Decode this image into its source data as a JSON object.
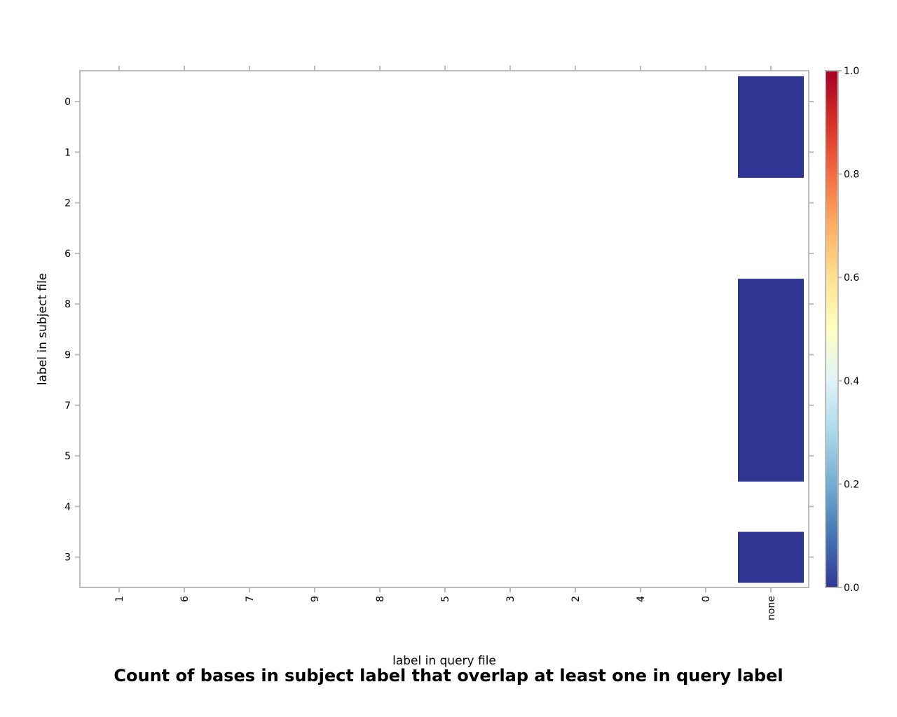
{
  "chart_data": {
    "type": "heatmap",
    "title": "Count of bases in subject label that overlap at least one in query label",
    "xlabel": "label in query file",
    "ylabel": "label in subject file",
    "x_categories": [
      "1",
      "6",
      "7",
      "9",
      "8",
      "5",
      "3",
      "2",
      "4",
      "0",
      "none"
    ],
    "y_categories": [
      "0",
      "1",
      "2",
      "6",
      "8",
      "9",
      "7",
      "5",
      "4",
      "3"
    ],
    "cells": [
      {
        "x": "none",
        "y": "0",
        "value": 0.0
      },
      {
        "x": "none",
        "y": "1",
        "value": 0.0
      },
      {
        "x": "none",
        "y": "8",
        "value": 0.0
      },
      {
        "x": "none",
        "y": "9",
        "value": 0.0
      },
      {
        "x": "none",
        "y": "7",
        "value": 0.0
      },
      {
        "x": "none",
        "y": "5",
        "value": 0.0
      },
      {
        "x": "none",
        "y": "3",
        "value": 0.0
      }
    ],
    "colorbar": {
      "range": [
        0.0,
        1.0
      ],
      "ticks": [
        "0.0",
        "0.2",
        "0.4",
        "0.6",
        "0.8",
        "1.0"
      ],
      "colormap": [
        "#313695",
        "#4575b4",
        "#74add1",
        "#abd9e9",
        "#e0f3f8",
        "#ffffbf",
        "#fee090",
        "#fdae61",
        "#f46d43",
        "#d73027",
        "#a50026"
      ]
    },
    "grid": false,
    "legend": "right colorbar"
  },
  "colors": {
    "axis": "#bbbbbb",
    "text": "#000000",
    "background": "#ffffff"
  }
}
